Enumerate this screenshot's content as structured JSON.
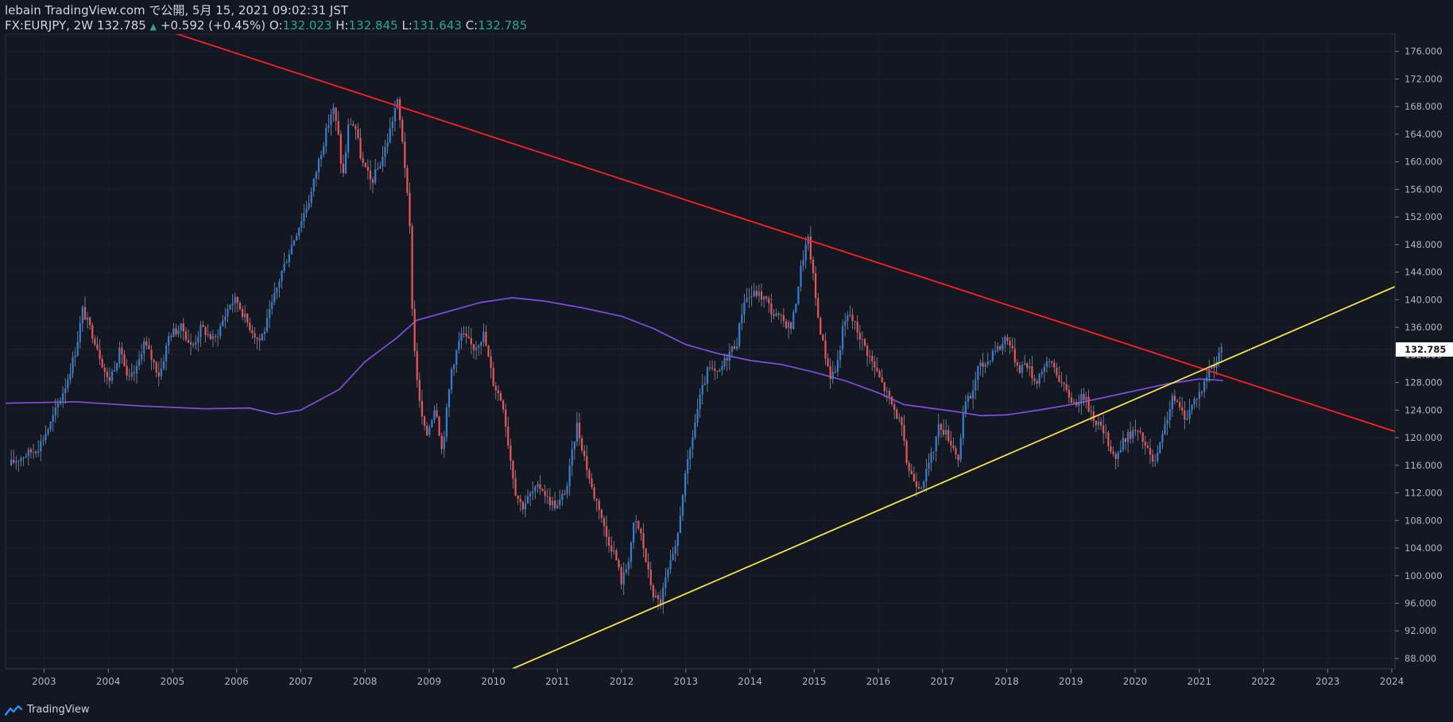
{
  "header": {
    "line1": "lebain TradingView.com で公開, 5月 15, 2021 09:02:31 JST",
    "symbol": "FX:EURJPY, 2W 132.785",
    "arrow": "▲",
    "change": "+0.592 (+0.45%)",
    "o_label": "O:",
    "o_value": "132.023",
    "h_label": "H:",
    "h_value": "132.845",
    "l_label": "L:",
    "l_value": "131.643",
    "c_label": "C:",
    "c_value": "132.785"
  },
  "footer": {
    "brand": "TradingView",
    "logo_icon": "tradingview-logo-icon"
  },
  "colors": {
    "background": "#131722",
    "up": "#2f7fd8",
    "down": "#ef5350",
    "ma": "#7e4ad6",
    "resistance": "#ff1f1f",
    "support": "#f5e14a",
    "axis_text": "#b2b5be",
    "price_label_bg": "#ffffff"
  },
  "chart_data": {
    "type": "candlestick",
    "symbol": "FX:EURJPY",
    "interval": "2W",
    "last_price": "132.785",
    "y_ticks": [
      "176.000",
      "172.000",
      "168.000",
      "164.000",
      "160.000",
      "156.000",
      "152.000",
      "148.000",
      "144.000",
      "140.000",
      "136.000",
      "132.000",
      "128.000",
      "124.000",
      "120.000",
      "116.000",
      "112.000",
      "108.000",
      "104.000",
      "100.000",
      "96.000",
      "92.000",
      "88.000"
    ],
    "ylim": [
      86.5,
      178.5
    ],
    "x_ticks": [
      "2003",
      "2004",
      "2005",
      "2006",
      "2007",
      "2008",
      "2009",
      "2010",
      "2011",
      "2012",
      "2013",
      "2014",
      "2015",
      "2016",
      "2017",
      "2018",
      "2019",
      "2020",
      "2021",
      "2022",
      "2023",
      "2024"
    ],
    "xlim": [
      2002.4,
      2024.05
    ],
    "price_path": [
      [
        2002.45,
        116
      ],
      [
        2002.6,
        117
      ],
      [
        2002.9,
        118.5
      ],
      [
        2003.1,
        122
      ],
      [
        2003.35,
        128
      ],
      [
        2003.5,
        133
      ],
      [
        2003.6,
        138.5
      ],
      [
        2003.8,
        134
      ],
      [
        2004.0,
        128
      ],
      [
        2004.2,
        133
      ],
      [
        2004.3,
        128
      ],
      [
        2004.45,
        130
      ],
      [
        2004.55,
        134
      ],
      [
        2004.8,
        129
      ],
      [
        2004.95,
        135
      ],
      [
        2005.15,
        136
      ],
      [
        2005.3,
        133
      ],
      [
        2005.45,
        136
      ],
      [
        2005.65,
        134
      ],
      [
        2005.9,
        139.5
      ],
      [
        2006.0,
        140
      ],
      [
        2006.15,
        137
      ],
      [
        2006.35,
        134
      ],
      [
        2006.45,
        136
      ],
      [
        2006.7,
        144
      ],
      [
        2006.9,
        149
      ],
      [
        2007.15,
        155
      ],
      [
        2007.3,
        161
      ],
      [
        2007.5,
        168
      ],
      [
        2007.6,
        163
      ],
      [
        2007.65,
        157
      ],
      [
        2007.75,
        166
      ],
      [
        2007.85,
        165
      ],
      [
        2007.95,
        160
      ],
      [
        2008.1,
        157
      ],
      [
        2008.25,
        160
      ],
      [
        2008.35,
        163
      ],
      [
        2008.5,
        169
      ],
      [
        2008.6,
        162
      ],
      [
        2008.7,
        150
      ],
      [
        2008.75,
        135
      ],
      [
        2008.85,
        125
      ],
      [
        2008.95,
        120
      ],
      [
        2009.1,
        125
      ],
      [
        2009.2,
        118
      ],
      [
        2009.35,
        130
      ],
      [
        2009.5,
        135
      ],
      [
        2009.7,
        133
      ],
      [
        2009.85,
        135
      ],
      [
        2010.0,
        128
      ],
      [
        2010.15,
        125
      ],
      [
        2010.25,
        118
      ],
      [
        2010.35,
        112
      ],
      [
        2010.45,
        110
      ],
      [
        2010.6,
        112
      ],
      [
        2010.75,
        113
      ],
      [
        2010.85,
        111
      ],
      [
        2011.0,
        110
      ],
      [
        2011.15,
        113
      ],
      [
        2011.3,
        122
      ],
      [
        2011.4,
        118
      ],
      [
        2011.55,
        112
      ],
      [
        2011.65,
        110
      ],
      [
        2011.75,
        106
      ],
      [
        2011.9,
        103
      ],
      [
        2012.0,
        99
      ],
      [
        2012.1,
        102
      ],
      [
        2012.2,
        108
      ],
      [
        2012.3,
        106
      ],
      [
        2012.4,
        101
      ],
      [
        2012.5,
        97
      ],
      [
        2012.6,
        96
      ],
      [
        2012.7,
        100
      ],
      [
        2012.85,
        104
      ],
      [
        2012.95,
        112
      ],
      [
        2013.1,
        120
      ],
      [
        2013.2,
        125
      ],
      [
        2013.35,
        130
      ],
      [
        2013.5,
        129
      ],
      [
        2013.65,
        132
      ],
      [
        2013.8,
        134
      ],
      [
        2013.9,
        140
      ],
      [
        2014.1,
        141
      ],
      [
        2014.25,
        140
      ],
      [
        2014.35,
        138
      ],
      [
        2014.5,
        137
      ],
      [
        2014.65,
        136
      ],
      [
        2014.8,
        145
      ],
      [
        2014.9,
        149
      ],
      [
        2014.95,
        146
      ],
      [
        2015.05,
        138
      ],
      [
        2015.15,
        133
      ],
      [
        2015.25,
        129
      ],
      [
        2015.35,
        130
      ],
      [
        2015.45,
        136
      ],
      [
        2015.55,
        138
      ],
      [
        2015.7,
        135
      ],
      [
        2015.85,
        132
      ],
      [
        2015.95,
        130
      ],
      [
        2016.1,
        127
      ],
      [
        2016.25,
        124
      ],
      [
        2016.35,
        122
      ],
      [
        2016.45,
        116
      ],
      [
        2016.55,
        114
      ],
      [
        2016.65,
        113
      ],
      [
        2016.75,
        115
      ],
      [
        2016.85,
        118
      ],
      [
        2016.95,
        122
      ],
      [
        2017.1,
        120
      ],
      [
        2017.25,
        117
      ],
      [
        2017.35,
        125
      ],
      [
        2017.45,
        126
      ],
      [
        2017.55,
        130
      ],
      [
        2017.7,
        131
      ],
      [
        2017.8,
        133
      ],
      [
        2017.9,
        133
      ],
      [
        2018.0,
        135
      ],
      [
        2018.1,
        132
      ],
      [
        2018.2,
        130
      ],
      [
        2018.3,
        131
      ],
      [
        2018.45,
        128
      ],
      [
        2018.55,
        130
      ],
      [
        2018.7,
        131
      ],
      [
        2018.8,
        129
      ],
      [
        2018.9,
        127
      ],
      [
        2019.05,
        125
      ],
      [
        2019.2,
        126
      ],
      [
        2019.35,
        123
      ],
      [
        2019.5,
        121
      ],
      [
        2019.6,
        119
      ],
      [
        2019.7,
        117
      ],
      [
        2019.85,
        120
      ],
      [
        2020.0,
        121
      ],
      [
        2020.1,
        120
      ],
      [
        2020.2,
        118
      ],
      [
        2020.3,
        116
      ],
      [
        2020.4,
        119
      ],
      [
        2020.5,
        123
      ],
      [
        2020.6,
        126
      ],
      [
        2020.7,
        124
      ],
      [
        2020.8,
        123
      ],
      [
        2020.95,
        126
      ],
      [
        2021.05,
        127
      ],
      [
        2021.15,
        130
      ],
      [
        2021.25,
        131
      ],
      [
        2021.37,
        132.8
      ]
    ],
    "ma_path": [
      [
        2002.4,
        125
      ],
      [
        2003.5,
        125.2
      ],
      [
        2004.5,
        124.6
      ],
      [
        2005.5,
        124.2
      ],
      [
        2006.2,
        124.3
      ],
      [
        2006.6,
        123.4
      ],
      [
        2007.0,
        124.0
      ],
      [
        2007.6,
        127.0
      ],
      [
        2008.0,
        131.0
      ],
      [
        2008.5,
        134.5
      ],
      [
        2008.8,
        137.0
      ],
      [
        2009.3,
        138.3
      ],
      [
        2009.8,
        139.6
      ],
      [
        2010.3,
        140.3
      ],
      [
        2010.8,
        139.8
      ],
      [
        2011.4,
        138.8
      ],
      [
        2012.0,
        137.6
      ],
      [
        2012.5,
        135.8
      ],
      [
        2013.0,
        133.5
      ],
      [
        2013.5,
        132.2
      ],
      [
        2014.0,
        131.2
      ],
      [
        2014.5,
        130.6
      ],
      [
        2015.0,
        129.5
      ],
      [
        2015.5,
        128.2
      ],
      [
        2016.0,
        126.5
      ],
      [
        2016.4,
        124.8
      ],
      [
        2016.8,
        124.3
      ],
      [
        2017.2,
        123.8
      ],
      [
        2017.6,
        123.2
      ],
      [
        2018.0,
        123.3
      ],
      [
        2018.5,
        124.0
      ],
      [
        2019.0,
        124.8
      ],
      [
        2019.5,
        125.8
      ],
      [
        2020.0,
        126.8
      ],
      [
        2020.5,
        127.8
      ],
      [
        2021.0,
        128.5
      ],
      [
        2021.37,
        128.3
      ]
    ],
    "trendlines": [
      {
        "name": "resistance",
        "points": [
          [
            2004.95,
            178.9
          ],
          [
            2024.05,
            120.9
          ]
        ]
      },
      {
        "name": "support",
        "points": [
          [
            2010.3,
            86.5
          ],
          [
            2024.05,
            141.9
          ]
        ]
      }
    ]
  }
}
